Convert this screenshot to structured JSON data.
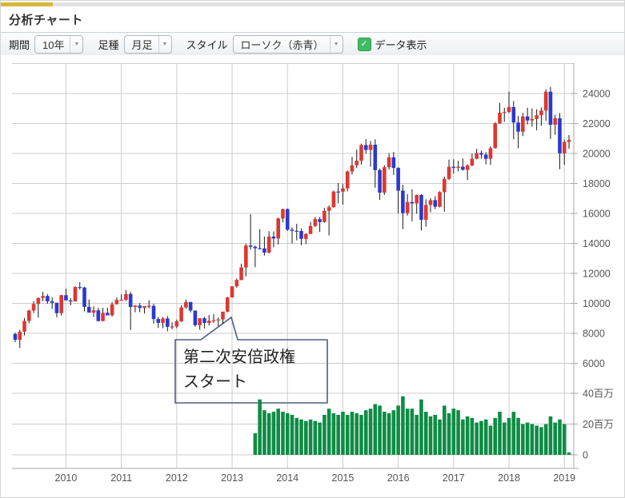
{
  "page": {
    "title": "分析チャート"
  },
  "toolbar": {
    "period_label": "期間",
    "period_value": "10年",
    "bartype_label": "足種",
    "bartype_value": "月足",
    "style_label": "スタイル",
    "style_value": "ローソク（赤青）",
    "data_display_label": "データ表示",
    "data_display_checked": true,
    "checkmark": "✓"
  },
  "annotation": {
    "line1": "第二次安倍政権",
    "line2": "スタート"
  },
  "colors": {
    "accent_gold": "#d9b53c",
    "up_red": "#dd3830",
    "down_blue": "#2a39cf",
    "volume_green": "#0e8c44",
    "grid": "#cccccc",
    "axis": "#aaaaaa",
    "axis_text": "#555555",
    "annotation_border": "#4a5f85",
    "checkbox_green": "#3fbb63"
  },
  "chart_data": {
    "type": "candlestick",
    "title": "",
    "xlabel": "",
    "ylabel": "",
    "price_axis_ticks": [
      24000,
      22000,
      20000,
      18000,
      16000,
      14000,
      12000,
      10000,
      8000,
      6000
    ],
    "price_axis_range": [
      4000,
      26000
    ],
    "volume_axis_ticks": [
      {
        "label": "40百万",
        "value": 40
      },
      {
        "label": "20百万",
        "value": 20
      },
      {
        "label": "0",
        "value": 0
      }
    ],
    "x_axis_ticks": [
      "2010",
      "2011",
      "2012",
      "2013",
      "2014",
      "2015",
      "2016",
      "2017",
      "2018",
      "2019"
    ],
    "grid": true,
    "legend": "none",
    "candles_format": [
      "month",
      "open",
      "high",
      "low",
      "close"
    ],
    "candles": [
      [
        "2009-02",
        7950,
        8050,
        7416,
        7568
      ],
      [
        "2009-03",
        7568,
        8238,
        7021,
        8110
      ],
      [
        "2009-04",
        8110,
        9028,
        7858,
        8828
      ],
      [
        "2009-05",
        8828,
        9575,
        8672,
        9523
      ],
      [
        "2009-06",
        9523,
        10136,
        9346,
        9958
      ],
      [
        "2009-07",
        9958,
        10397,
        9050,
        10357
      ],
      [
        "2009-08",
        10357,
        10767,
        10142,
        10493
      ],
      [
        "2009-09",
        10493,
        10620,
        9971,
        10133
      ],
      [
        "2009-10",
        10133,
        10397,
        9628,
        10035
      ],
      [
        "2009-11",
        10035,
        10057,
        9076,
        9346
      ],
      [
        "2009-12",
        9346,
        10563,
        9183,
        10546
      ],
      [
        "2010-01",
        10546,
        10982,
        10198,
        10198
      ],
      [
        "2010-02",
        10198,
        10356,
        9867,
        10126
      ],
      [
        "2010-03",
        10126,
        11147,
        10126,
        11090
      ],
      [
        "2010-04",
        11090,
        11408,
        10924,
        11057
      ],
      [
        "2010-05",
        11057,
        11105,
        9459,
        9769
      ],
      [
        "2010-06",
        9769,
        10251,
        9378,
        9383
      ],
      [
        "2010-07",
        9383,
        9807,
        9091,
        9537
      ],
      [
        "2010-08",
        9537,
        9704,
        8796,
        8824
      ],
      [
        "2010-09",
        8824,
        9704,
        8797,
        9369
      ],
      [
        "2010-10",
        9369,
        9706,
        9202,
        9202
      ],
      [
        "2010-11",
        9202,
        10080,
        9123,
        9937
      ],
      [
        "2010-12",
        9937,
        10394,
        9937,
        10229
      ],
      [
        "2011-01",
        10229,
        10599,
        10184,
        10238
      ],
      [
        "2011-02",
        10238,
        10892,
        10175,
        10624
      ],
      [
        "2011-03",
        10624,
        10768,
        8227,
        9755
      ],
      [
        "2011-04",
        9755,
        9893,
        9405,
        9850
      ],
      [
        "2011-05",
        9850,
        10017,
        9406,
        9694
      ],
      [
        "2011-06",
        9694,
        9816,
        9318,
        9816
      ],
      [
        "2011-07",
        9816,
        10207,
        9659,
        9833
      ],
      [
        "2011-08",
        9833,
        9965,
        8656,
        8955
      ],
      [
        "2011-09",
        8955,
        9098,
        8359,
        8700
      ],
      [
        "2011-10",
        8700,
        9086,
        8343,
        8988
      ],
      [
        "2011-11",
        8988,
        9152,
        8135,
        8435
      ],
      [
        "2011-12",
        8435,
        8729,
        8272,
        8455
      ],
      [
        "2012-01",
        8455,
        8911,
        8349,
        8803
      ],
      [
        "2012-02",
        8803,
        9866,
        8753,
        9723
      ],
      [
        "2012-03",
        9723,
        10255,
        9637,
        10084
      ],
      [
        "2012-04",
        10084,
        10108,
        9388,
        9521
      ],
      [
        "2012-05",
        9521,
        9524,
        8442,
        8543
      ],
      [
        "2012-06",
        8543,
        9007,
        8238,
        9007
      ],
      [
        "2012-07",
        9007,
        9104,
        8328,
        8695
      ],
      [
        "2012-08",
        8695,
        9222,
        8522,
        8840
      ],
      [
        "2012-09",
        8840,
        9288,
        8684,
        8870
      ],
      [
        "2012-10",
        8870,
        9055,
        8488,
        8928
      ],
      [
        "2012-11",
        8928,
        9446,
        8619,
        9446
      ],
      [
        "2012-12",
        9446,
        10433,
        9405,
        10395
      ],
      [
        "2013-01",
        10395,
        11138,
        10380,
        11139
      ],
      [
        "2013-02",
        11139,
        11662,
        11046,
        11559
      ],
      [
        "2013-03",
        11559,
        12650,
        11542,
        12398
      ],
      [
        "2013-04",
        12398,
        13983,
        11805,
        13861
      ],
      [
        "2013-05",
        13861,
        15943,
        13589,
        13775
      ],
      [
        "2013-06",
        13775,
        13852,
        12415,
        13677
      ],
      [
        "2013-07",
        13677,
        14953,
        13613,
        13668
      ],
      [
        "2013-08",
        13668,
        14466,
        13188,
        13389
      ],
      [
        "2013-09",
        13389,
        14817,
        13325,
        14456
      ],
      [
        "2013-10",
        14456,
        14799,
        13748,
        14328
      ],
      [
        "2013-11",
        14328,
        15727,
        13932,
        15662
      ],
      [
        "2013-12",
        15662,
        16320,
        15407,
        16291
      ],
      [
        "2014-01",
        16291,
        16331,
        14836,
        14915
      ],
      [
        "2014-02",
        14915,
        15067,
        13995,
        14841
      ],
      [
        "2014-03",
        14841,
        15312,
        14203,
        14828
      ],
      [
        "2014-04",
        14828,
        15004,
        13885,
        14304
      ],
      [
        "2014-05",
        14304,
        14685,
        13964,
        14632
      ],
      [
        "2014-06",
        14632,
        15442,
        14622,
        15162
      ],
      [
        "2014-07",
        15162,
        15759,
        15101,
        15621
      ],
      [
        "2014-08",
        15621,
        15760,
        14753,
        15425
      ],
      [
        "2014-09",
        15425,
        16374,
        15380,
        16174
      ],
      [
        "2014-10",
        16174,
        16533,
        14529,
        16414
      ],
      [
        "2014-11",
        16414,
        17520,
        16389,
        17460
      ],
      [
        "2014-12",
        17460,
        18030,
        16672,
        17451
      ],
      [
        "2015-01",
        17451,
        17951,
        16592,
        17674
      ],
      [
        "2015-02",
        17674,
        18865,
        17468,
        18798
      ],
      [
        "2015-03",
        18798,
        19778,
        18604,
        19207
      ],
      [
        "2015-04",
        19207,
        20252,
        19034,
        19520
      ],
      [
        "2015-05",
        19520,
        20655,
        19257,
        20563
      ],
      [
        "2015-06",
        20563,
        20952,
        19990,
        20236
      ],
      [
        "2015-07",
        20236,
        20841,
        19116,
        20585
      ],
      [
        "2015-08",
        20585,
        20946,
        17714,
        18890
      ],
      [
        "2015-09",
        18890,
        18998,
        16901,
        17388
      ],
      [
        "2015-10",
        17388,
        19202,
        17234,
        19083
      ],
      [
        "2015-11",
        19083,
        20012,
        18936,
        19747
      ],
      [
        "2015-12",
        19747,
        20102,
        18565,
        19034
      ],
      [
        "2016-01",
        19034,
        19085,
        16017,
        17518
      ],
      [
        "2016-02",
        17518,
        17905,
        14952,
        16027
      ],
      [
        "2016-03",
        16027,
        17291,
        15857,
        16759
      ],
      [
        "2016-04",
        16759,
        17613,
        15471,
        16666
      ],
      [
        "2016-05",
        16666,
        17251,
        15975,
        17235
      ],
      [
        "2016-06",
        17235,
        17284,
        14864,
        15576
      ],
      [
        "2016-07",
        15576,
        16938,
        15106,
        16569
      ],
      [
        "2016-08",
        16569,
        17019,
        16083,
        16887
      ],
      [
        "2016-09",
        16887,
        17156,
        16285,
        16450
      ],
      [
        "2016-10",
        16450,
        17482,
        16399,
        17425
      ],
      [
        "2016-11",
        17425,
        18465,
        16111,
        18308
      ],
      [
        "2016-12",
        18308,
        19592,
        18224,
        19114
      ],
      [
        "2017-01",
        19114,
        19615,
        18650,
        19041
      ],
      [
        "2017-02",
        19041,
        19519,
        18805,
        19119
      ],
      [
        "2017-03",
        19119,
        19657,
        18860,
        18909
      ],
      [
        "2017-04",
        18909,
        19290,
        18224,
        19197
      ],
      [
        "2017-05",
        19197,
        19998,
        19157,
        19651
      ],
      [
        "2017-06",
        19651,
        20318,
        19610,
        20033
      ],
      [
        "2017-07",
        20033,
        20195,
        19655,
        19925
      ],
      [
        "2017-08",
        19925,
        20081,
        19280,
        19646
      ],
      [
        "2017-09",
        19646,
        20481,
        19239,
        20356
      ],
      [
        "2017-10",
        20356,
        22087,
        20328,
        22012
      ],
      [
        "2017-11",
        22012,
        23382,
        21972,
        22725
      ],
      [
        "2017-12",
        22725,
        23045,
        22119,
        22765
      ],
      [
        "2018-01",
        22765,
        24129,
        22700,
        23098
      ],
      [
        "2018-02",
        23098,
        23498,
        20950,
        22068
      ],
      [
        "2018-03",
        22068,
        22502,
        20347,
        21454
      ],
      [
        "2018-04",
        21454,
        22717,
        21160,
        22468
      ],
      [
        "2018-05",
        22468,
        23050,
        21932,
        22202
      ],
      [
        "2018-06",
        22202,
        23011,
        21785,
        22305
      ],
      [
        "2018-07",
        22305,
        22949,
        21547,
        22554
      ],
      [
        "2018-08",
        22554,
        23070,
        21852,
        22865
      ],
      [
        "2018-09",
        22865,
        24286,
        22173,
        24120
      ],
      [
        "2018-10",
        24120,
        24448,
        20971,
        21920
      ],
      [
        "2018-11",
        21920,
        22583,
        21244,
        22351
      ],
      [
        "2018-12",
        22351,
        22698,
        18948,
        20015
      ],
      [
        "2019-01",
        20015,
        20929,
        19241,
        20773
      ],
      [
        "2019-02",
        20773,
        21236,
        20315,
        20900
      ]
    ],
    "volumes_million": {
      "start": "2013-06",
      "values": [
        14,
        36,
        29,
        27,
        28,
        30,
        28,
        27,
        26,
        24,
        23,
        22,
        23,
        22,
        21,
        26,
        30,
        27,
        26,
        28,
        26,
        28,
        27,
        26,
        29,
        30,
        33,
        32,
        28,
        27,
        29,
        32,
        38,
        30,
        30,
        26,
        36,
        28,
        25,
        26,
        23,
        32,
        27,
        30,
        29,
        23,
        25,
        24,
        21,
        22,
        23,
        19,
        24,
        28,
        21,
        24,
        28,
        24,
        20,
        21,
        20,
        19,
        18,
        20,
        25,
        21,
        23,
        20,
        1.5
      ]
    },
    "annotation": {
      "text_line1": "第二次安倍政権",
      "text_line2": "スタート",
      "points_at_month": "2012-12"
    }
  }
}
